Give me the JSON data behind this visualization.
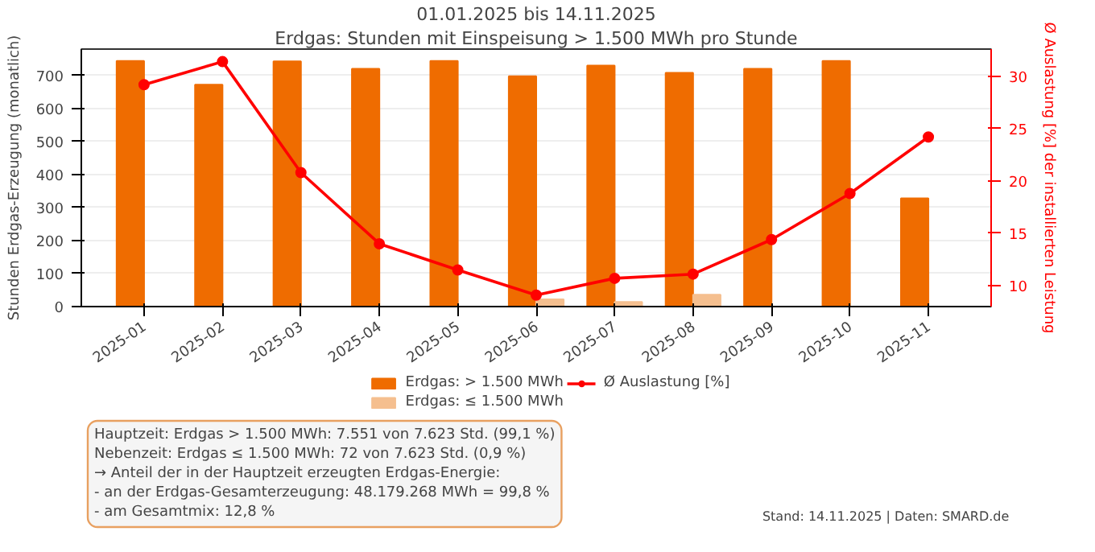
{
  "chart_data": {
    "type": "bar",
    "title": "Erdgas: Stunden mit Einspeisung > 1.500 MWh pro Stunde",
    "subtitle": "01.01.2025 bis 14.11.2025",
    "ylabel": "Stunden Erdgas-Erzeugung (monatlich)",
    "y2label": "Ø Auslastung [%] der installierten Leistung",
    "categories": [
      "2025-01",
      "2025-02",
      "2025-03",
      "2025-04",
      "2025-05",
      "2025-06",
      "2025-07",
      "2025-08",
      "2025-09",
      "2025-10",
      "2025-11"
    ],
    "series": [
      {
        "name": "Erdgas: > 1.500 MWh",
        "color": "#ef6c00",
        "values": [
          744,
          672,
          743,
          720,
          744,
          698,
          730,
          708,
          720,
          744,
          328
        ]
      },
      {
        "name": "Erdgas: ≤ 1.500 MWh",
        "color": "#f5bf8f",
        "values": [
          null,
          null,
          null,
          null,
          null,
          22,
          14,
          36,
          null,
          null,
          null
        ]
      },
      {
        "name": "Ø Auslastung [%]",
        "type": "line",
        "axis": "y2",
        "color": "#ff0000",
        "marker": "circle",
        "values": [
          29.2,
          31.4,
          20.8,
          14.0,
          11.5,
          9.1,
          10.7,
          11.1,
          14.4,
          18.8,
          24.2
        ]
      }
    ],
    "ylim": [
      0,
      780
    ],
    "yticks": [
      0,
      100,
      200,
      300,
      400,
      500,
      600,
      700
    ],
    "y2lim": [
      8,
      32.6
    ],
    "y2ticks": [
      10,
      15,
      20,
      25,
      30
    ],
    "grid": "y",
    "legend": "bottom",
    "annotations": [
      "Hauptzeit: Erdgas > 1.500 MWh: 7.551 von 7.623 Std. (99,1 %)\nNebenzeit: Erdgas ≤ 1.500 MWh: 72 von 7.623 Std. (0,9 %)\n→ Anteil der in der Hauptzeit erzeugten Erdgas-Energie:\n- an der Erdgas-Gesamterzeugung: 48.179.268 MWh = 99,8 %\n- am Gesamtmix: 12,8 %",
      "Stand: 14.11.2025 | Daten: SMARD.de"
    ]
  }
}
